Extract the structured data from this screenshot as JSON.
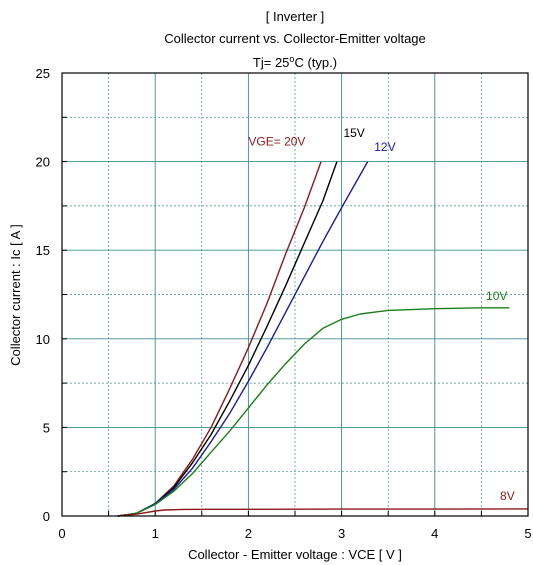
{
  "header": {
    "title_line1": "[ Inverter ]",
    "title_line2": "Collector current  vs.  Collector-Emitter voltage"
  },
  "chart_data": {
    "type": "line",
    "title": "[ Inverter ] Collector current  vs.  Collector-Emitter voltage",
    "condition_prefix": "Tj= 25",
    "condition_sup": "o",
    "condition_suffix": "C  (typ.)",
    "xlabel": "Collector - Emitter voltage  :  VCE  [ V ]",
    "ylabel": "Collector current  :  Ic  [ A ]",
    "xlim": [
      0,
      5
    ],
    "ylim": [
      0,
      25
    ],
    "xticks": [
      "0",
      "1",
      "2",
      "3",
      "4",
      "5"
    ],
    "yticks": [
      "0",
      "5",
      "10",
      "15",
      "20",
      "25"
    ],
    "grid": true,
    "minor_grid": true,
    "series": [
      {
        "name": "VGE= 20V",
        "color": "#8b1a1a",
        "x": [
          0.6,
          0.8,
          1.0,
          1.2,
          1.4,
          1.6,
          1.8,
          2.0,
          2.2,
          2.4,
          2.6,
          2.78
        ],
        "y": [
          0.0,
          0.15,
          0.7,
          1.7,
          3.2,
          5.0,
          7.2,
          9.5,
          12.0,
          14.8,
          17.4,
          20.0
        ]
      },
      {
        "name": "15V",
        "color": "#000000",
        "x": [
          0.6,
          0.8,
          1.0,
          1.2,
          1.4,
          1.6,
          1.8,
          2.0,
          2.2,
          2.4,
          2.6,
          2.8,
          2.95
        ],
        "y": [
          0.0,
          0.15,
          0.7,
          1.6,
          3.0,
          4.6,
          6.5,
          8.5,
          10.7,
          13.0,
          15.4,
          17.8,
          20.0
        ]
      },
      {
        "name": "12V",
        "color": "#1a1a9e",
        "x": [
          0.6,
          0.8,
          1.0,
          1.2,
          1.4,
          1.6,
          1.8,
          2.0,
          2.2,
          2.4,
          2.6,
          2.8,
          3.0,
          3.28
        ],
        "y": [
          0.0,
          0.15,
          0.7,
          1.5,
          2.7,
          4.2,
          5.8,
          7.6,
          9.5,
          11.5,
          13.5,
          15.5,
          17.4,
          20.0
        ]
      },
      {
        "name": "10V",
        "color": "#1a7f1a",
        "x": [
          0.6,
          0.8,
          1.0,
          1.2,
          1.4,
          1.6,
          1.8,
          2.0,
          2.2,
          2.4,
          2.6,
          2.8,
          3.0,
          3.2,
          3.5,
          4.0,
          4.5,
          4.8
        ],
        "y": [
          0.0,
          0.15,
          0.65,
          1.4,
          2.4,
          3.6,
          4.8,
          6.1,
          7.4,
          8.6,
          9.7,
          10.6,
          11.1,
          11.4,
          11.6,
          11.7,
          11.75,
          11.75
        ]
      },
      {
        "name": "8V",
        "color": "#8b1a1a",
        "x": [
          0.6,
          0.8,
          1.0,
          1.1,
          1.3,
          1.6,
          2.0,
          3.0,
          4.0,
          5.0
        ],
        "y": [
          0.0,
          0.1,
          0.28,
          0.34,
          0.37,
          0.38,
          0.38,
          0.39,
          0.39,
          0.4
        ]
      }
    ]
  }
}
